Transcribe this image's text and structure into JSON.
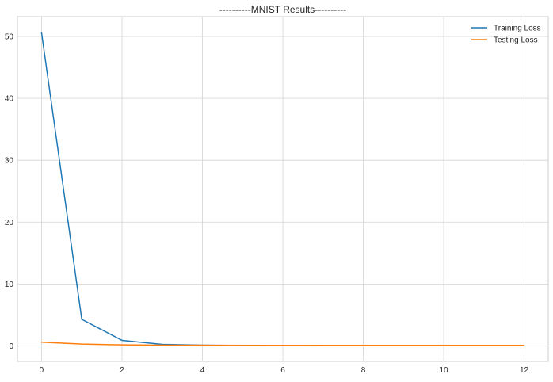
{
  "chart_data": {
    "type": "line",
    "title": "----------MNIST Results----------",
    "xlabel": "",
    "ylabel": "",
    "xlim": [
      -0.6,
      12.6
    ],
    "ylim": [
      -2.5,
      53.2
    ],
    "xticks": [
      0,
      2,
      4,
      6,
      8,
      10,
      12
    ],
    "yticks": [
      0,
      10,
      20,
      30,
      40,
      50
    ],
    "grid": true,
    "legend_position": "top-right",
    "x": [
      0,
      1,
      2,
      3,
      4,
      5,
      6,
      7,
      8,
      9,
      10,
      11,
      12
    ],
    "series": [
      {
        "name": "Training Loss",
        "color": "#1f77b4",
        "values": [
          50.6,
          4.3,
          0.9,
          0.25,
          0.12,
          0.08,
          0.06,
          0.05,
          0.05,
          0.04,
          0.04,
          0.04,
          0.04
        ]
      },
      {
        "name": "Testing Loss",
        "color": "#ff7f0e",
        "values": [
          0.6,
          0.3,
          0.18,
          0.13,
          0.11,
          0.1,
          0.1,
          0.09,
          0.09,
          0.09,
          0.09,
          0.09,
          0.09
        ]
      }
    ]
  }
}
